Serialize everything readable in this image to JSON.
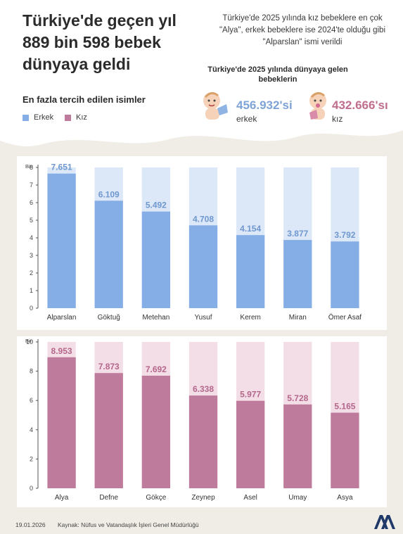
{
  "header": {
    "title": "Türkiye'de geçen yıl 889 bin 598 bebek dünyaya geldi",
    "intro": "Türkiye'de 2025 yılında kız bebeklere en çok \"Alya\", erkek bebeklere ise 2024'te olduğu gibi \"Alparslan\" ismi verildi",
    "births_title": "Türkiye'de 2025 yılında dünyaya gelen bebeklerin",
    "births": {
      "male": {
        "count": "456.932'si",
        "label": "erkek",
        "icon": "boy-baby-icon",
        "color": "#7ea3d6"
      },
      "female": {
        "count": "432.666'sı",
        "label": "kız",
        "icon": "girl-baby-icon",
        "color": "#c06d8e"
      }
    },
    "subtitle": "En fazla tercih edilen isimler"
  },
  "legend": [
    {
      "label": "Erkek",
      "color": "#86aee6"
    },
    {
      "label": "Kız",
      "color": "#bf7b9b"
    }
  ],
  "chart_data": [
    {
      "type": "bar",
      "ylabel": "Bin",
      "ylim": [
        0,
        8
      ],
      "yticks": [
        "0",
        "1",
        "2",
        "3",
        "4",
        "5",
        "6",
        "7",
        "8"
      ],
      "categories": [
        "Alparslan",
        "Göktuğ",
        "Metehan",
        "Yusuf",
        "Kerem",
        "Miran",
        "Ömer Asaf"
      ],
      "values": [
        7.651,
        6.109,
        5.492,
        4.708,
        4.154,
        3.877,
        3.792
      ],
      "labels": [
        "7.651",
        "6.109",
        "5.492",
        "4.708",
        "4.154",
        "3.877",
        "3.792"
      ],
      "bar_color": "#86aee6",
      "track_color": "#dce7f7",
      "label_color": "#6f98cf"
    },
    {
      "type": "bar",
      "ylabel": "Bin",
      "ylim": [
        0,
        10
      ],
      "yticks": [
        "0",
        "2",
        "4",
        "6",
        "8",
        "10"
      ],
      "categories": [
        "Alya",
        "Defne",
        "Gökçe",
        "Zeynep",
        "Asel",
        "Umay",
        "Asya"
      ],
      "values": [
        8.953,
        7.873,
        7.692,
        6.338,
        5.977,
        5.728,
        5.165
      ],
      "labels": [
        "8.953",
        "7.873",
        "7.692",
        "6.338",
        "5.977",
        "5.728",
        "5.165"
      ],
      "bar_color": "#bf7b9b",
      "track_color": "#f3dde7",
      "label_color": "#b4678a"
    }
  ],
  "footer": {
    "date": "19.01.2026",
    "source": "Kaynak: Nüfus ve Vatandaşlık İşleri Genel Müdürlüğü",
    "logo": "aa-logo"
  }
}
